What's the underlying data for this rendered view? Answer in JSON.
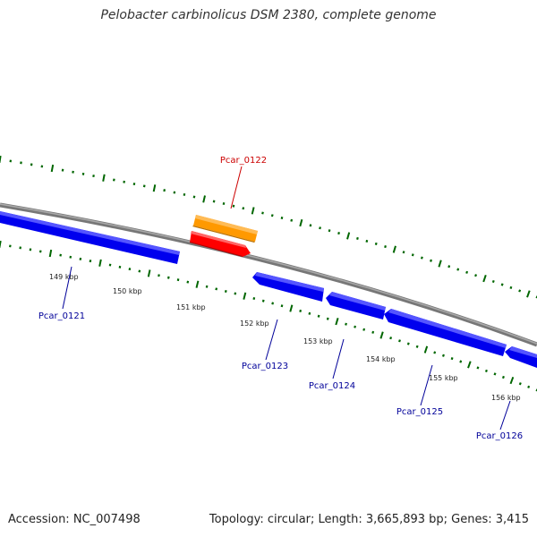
{
  "title": "Pelobacter carbinolicus DSM 2380, complete genome",
  "footer": {
    "accession": "Accession: NC_007498",
    "summary": "Topology: circular; Length: 3,665,893 bp; Genes: 3,415"
  },
  "colors": {
    "forward_gene": "#ff0000",
    "forward_cds": "#ff9900",
    "reverse_gene": "#0000ee",
    "backbone": "#888888",
    "tick": "#006600",
    "forward_label": "#cc0000",
    "reverse_label": "#000099"
  },
  "scale_labels": [
    "149 kbp",
    "150 kbp",
    "151 kbp",
    "152 kbp",
    "153 kbp",
    "154 kbp",
    "155 kbp",
    "156 kbp"
  ],
  "gene_labels": [
    {
      "id": "Pcar_0122",
      "strand": "forward"
    },
    {
      "id": "Pcar_0121",
      "strand": "reverse"
    },
    {
      "id": "Pcar_0123",
      "strand": "reverse"
    },
    {
      "id": "Pcar_0124",
      "strand": "reverse"
    },
    {
      "id": "Pcar_0125",
      "strand": "reverse"
    },
    {
      "id": "Pcar_0126",
      "strand": "reverse"
    }
  ]
}
